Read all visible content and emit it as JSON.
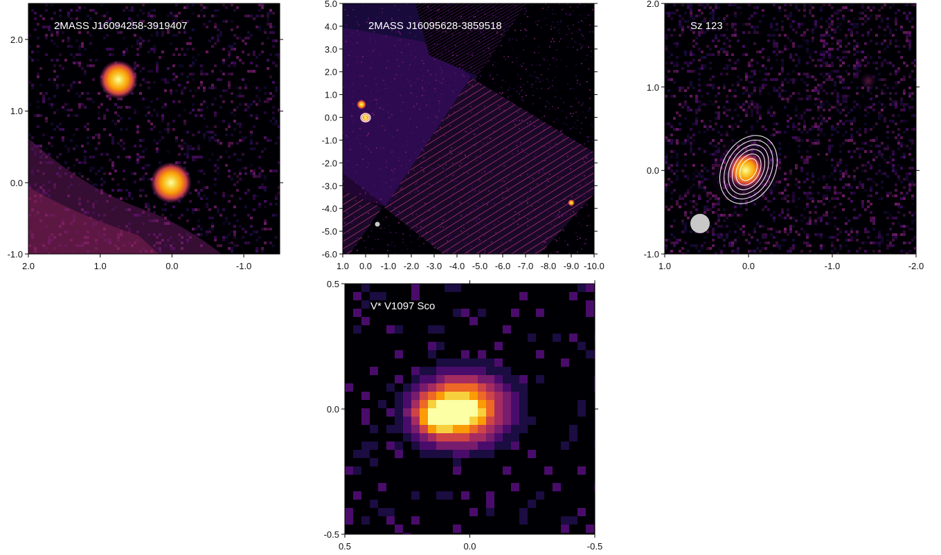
{
  "panels": [
    {
      "title": "2MASS J16094258-3919407",
      "x_ticks": [
        "2.0",
        "1.0",
        "0.0",
        "-1.0"
      ],
      "y_ticks": [
        "-1.0",
        "0.0",
        "1.0",
        "2.0"
      ]
    },
    {
      "title": "2MASS J16095628-3859518",
      "x_ticks": [
        "1.0",
        "0.0",
        "-1.0",
        "-2.0",
        "-3.0",
        "-4.0",
        "-5.0",
        "-6.0",
        "-7.0",
        "-8.0",
        "-9.0",
        "-10.0"
      ],
      "y_ticks": [
        "-6.0",
        "-5.0",
        "-4.0",
        "-3.0",
        "-2.0",
        "-1.0",
        "0.0",
        "1.0",
        "2.0",
        "3.0",
        "4.0",
        "5.0"
      ]
    },
    {
      "title": "Sz 123",
      "x_ticks": [
        "1.0",
        "0.0",
        "-1.0",
        "-2.0"
      ],
      "y_ticks": [
        "-1.0",
        "0.0",
        "1.0",
        "2.0"
      ]
    },
    {
      "title": "V* V1097 Sco",
      "x_ticks": [
        "0.5",
        "0.0",
        "-0.5"
      ],
      "y_ticks": [
        "-0.5",
        "0.0",
        "0.5"
      ]
    }
  ],
  "colors": {
    "background": "#000004",
    "colormap": [
      "#000004",
      "#1b0c41",
      "#4a0c6b",
      "#781c6d",
      "#a52c60",
      "#cf4446",
      "#ed6925",
      "#fb9b06",
      "#f7d13d",
      "#fcffa4"
    ],
    "contour": "#ffffff",
    "beam": "#c8c8c8"
  }
}
